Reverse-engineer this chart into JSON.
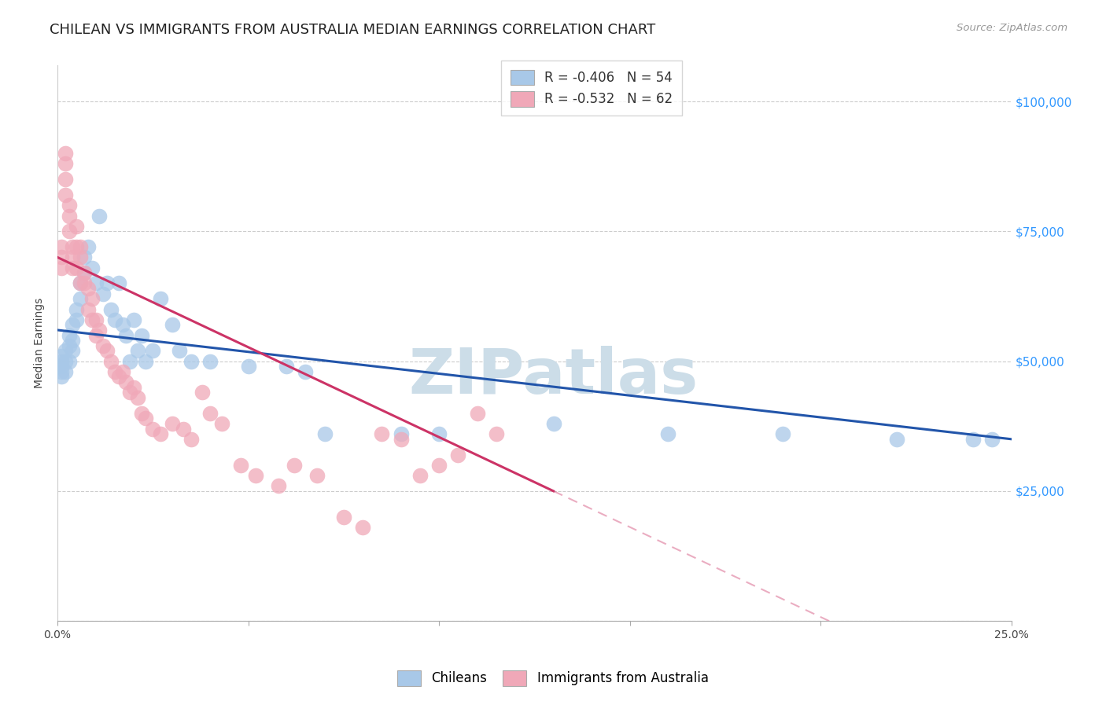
{
  "title": "CHILEAN VS IMMIGRANTS FROM AUSTRALIA MEDIAN EARNINGS CORRELATION CHART",
  "source": "Source: ZipAtlas.com",
  "ylabel": "Median Earnings",
  "yticks": [
    0,
    25000,
    50000,
    75000,
    100000
  ],
  "ytick_labels": [
    "",
    "$25,000",
    "$50,000",
    "$75,000",
    "$100,000"
  ],
  "xlim": [
    0.0,
    0.25
  ],
  "ylim": [
    0,
    107000
  ],
  "legend_blue_r": "-0.406",
  "legend_blue_n": "54",
  "legend_pink_r": "-0.532",
  "legend_pink_n": "62",
  "watermark": "ZIPatlas",
  "blue_scatter_x": [
    0.001,
    0.001,
    0.001,
    0.001,
    0.001,
    0.002,
    0.002,
    0.002,
    0.003,
    0.003,
    0.003,
    0.004,
    0.004,
    0.004,
    0.005,
    0.005,
    0.006,
    0.006,
    0.007,
    0.007,
    0.008,
    0.009,
    0.01,
    0.011,
    0.012,
    0.013,
    0.014,
    0.015,
    0.016,
    0.017,
    0.018,
    0.019,
    0.02,
    0.021,
    0.022,
    0.023,
    0.025,
    0.027,
    0.03,
    0.032,
    0.035,
    0.04,
    0.05,
    0.06,
    0.065,
    0.07,
    0.09,
    0.1,
    0.13,
    0.16,
    0.19,
    0.22,
    0.24,
    0.245
  ],
  "blue_scatter_y": [
    49000,
    50000,
    48000,
    47000,
    51000,
    52000,
    50000,
    48000,
    53000,
    55000,
    50000,
    57000,
    54000,
    52000,
    60000,
    58000,
    65000,
    62000,
    70000,
    67000,
    72000,
    68000,
    65000,
    78000,
    63000,
    65000,
    60000,
    58000,
    65000,
    57000,
    55000,
    50000,
    58000,
    52000,
    55000,
    50000,
    52000,
    62000,
    57000,
    52000,
    50000,
    50000,
    49000,
    49000,
    48000,
    36000,
    36000,
    36000,
    38000,
    36000,
    36000,
    35000,
    35000,
    35000
  ],
  "pink_scatter_x": [
    0.001,
    0.001,
    0.001,
    0.002,
    0.002,
    0.002,
    0.002,
    0.003,
    0.003,
    0.003,
    0.004,
    0.004,
    0.004,
    0.005,
    0.005,
    0.005,
    0.006,
    0.006,
    0.006,
    0.007,
    0.007,
    0.008,
    0.008,
    0.009,
    0.009,
    0.01,
    0.01,
    0.011,
    0.012,
    0.013,
    0.014,
    0.015,
    0.016,
    0.017,
    0.018,
    0.019,
    0.02,
    0.021,
    0.022,
    0.023,
    0.025,
    0.027,
    0.03,
    0.033,
    0.035,
    0.038,
    0.04,
    0.043,
    0.048,
    0.052,
    0.058,
    0.062,
    0.068,
    0.075,
    0.08,
    0.085,
    0.09,
    0.095,
    0.1,
    0.105,
    0.11,
    0.115
  ],
  "pink_scatter_y": [
    70000,
    68000,
    72000,
    85000,
    88000,
    82000,
    90000,
    78000,
    75000,
    80000,
    72000,
    70000,
    68000,
    72000,
    68000,
    76000,
    72000,
    65000,
    70000,
    65000,
    67000,
    64000,
    60000,
    62000,
    58000,
    58000,
    55000,
    56000,
    53000,
    52000,
    50000,
    48000,
    47000,
    48000,
    46000,
    44000,
    45000,
    43000,
    40000,
    39000,
    37000,
    36000,
    38000,
    37000,
    35000,
    44000,
    40000,
    38000,
    30000,
    28000,
    26000,
    30000,
    28000,
    20000,
    18000,
    36000,
    35000,
    28000,
    30000,
    32000,
    40000,
    36000
  ],
  "blue_color": "#a8c8e8",
  "pink_color": "#f0a8b8",
  "blue_line_color": "#2255aa",
  "pink_line_color": "#cc3366",
  "grid_color": "#cccccc",
  "background_color": "#ffffff",
  "title_fontsize": 13,
  "axis_label_fontsize": 10,
  "tick_fontsize": 10,
  "ytick_color": "#3399ff",
  "watermark_color": "#ccdde8"
}
